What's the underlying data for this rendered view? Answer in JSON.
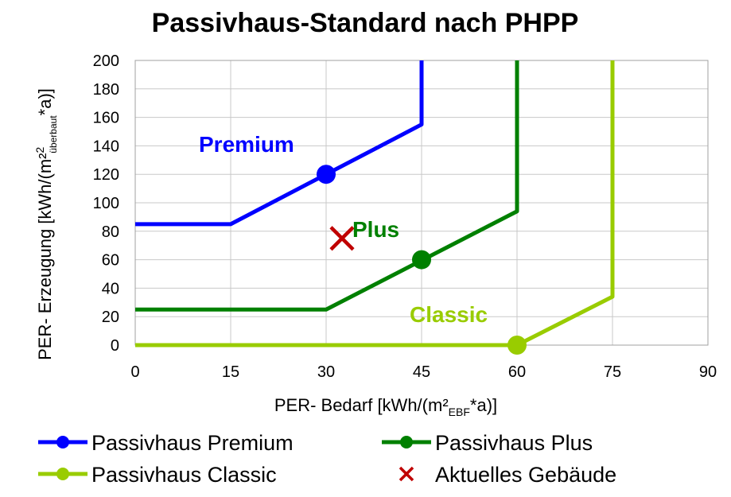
{
  "chart_data": {
    "type": "line",
    "title": "Passivhaus-Standard nach PHPP",
    "xlabel": {
      "main": "PER- Bedarf [kWh/(m²",
      "sub": "EBF",
      "end": "*a)]"
    },
    "ylabel": {
      "main": "PER- Erzeugung [kWh/(m²",
      "sup": "2",
      "sub": "überbaut",
      "end": "*a)]"
    },
    "xlim": [
      0,
      90
    ],
    "ylim": [
      0,
      200
    ],
    "xticks": [
      "0",
      "15",
      "30",
      "45",
      "60",
      "75",
      "90"
    ],
    "yticks": [
      "0",
      "20",
      "40",
      "60",
      "80",
      "100",
      "120",
      "140",
      "160",
      "180",
      "200"
    ],
    "grid": true,
    "legend_position": "bottom",
    "series": [
      {
        "name": "Passivhaus Premium",
        "color": "#0000ff",
        "annotation": "Premium",
        "points": [
          [
            0,
            85
          ],
          [
            15,
            85
          ],
          [
            45,
            155
          ],
          [
            45,
            200
          ]
        ],
        "marker": [
          30,
          120
        ]
      },
      {
        "name": "Passivhaus Plus",
        "color": "#008000",
        "annotation": "Plus",
        "points": [
          [
            0,
            25
          ],
          [
            30,
            25
          ],
          [
            60,
            94
          ],
          [
            60,
            200
          ]
        ],
        "marker": [
          45,
          60
        ]
      },
      {
        "name": "Passivhaus Classic",
        "color": "#99cc00",
        "annotation": "Classic",
        "points": [
          [
            0,
            0
          ],
          [
            60,
            0
          ],
          [
            75,
            34
          ],
          [
            75,
            200
          ]
        ],
        "marker": [
          60,
          0
        ]
      }
    ],
    "current_building": {
      "name": "Aktuelles Gebäude",
      "color": "#c00000",
      "x": 32.5,
      "y": 75
    }
  }
}
